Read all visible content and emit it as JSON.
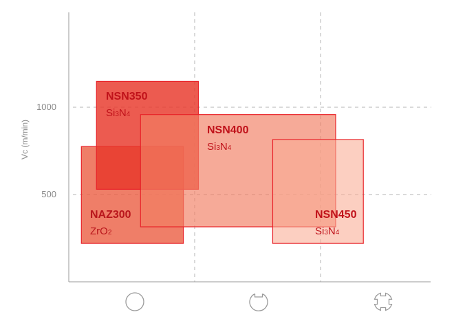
{
  "chart_data": {
    "type": "bar",
    "ylabel": "Vc (m/min)",
    "yticks": [
      500,
      1000
    ],
    "ylim": [
      0,
      1550
    ],
    "xlim": [
      0,
      3
    ],
    "x_categories": [
      {
        "name": "continuous-cut-icon"
      },
      {
        "name": "light-interrupted-cut-icon"
      },
      {
        "name": "heavy-interrupted-cut-icon"
      }
    ],
    "grid": {
      "vertical_dashed": [
        1,
        2
      ],
      "horizontal_dashed": [
        500,
        1000
      ]
    },
    "boxes": [
      {
        "id": "naz300",
        "name": "NAZ300",
        "mat_base": "ZrO",
        "mat_sub": "2",
        "x0": 0.1,
        "x1": 0.91,
        "y0": 220,
        "y1": 775,
        "fill": "#ea5a3e",
        "opacity": 0.78,
        "text_color": "#b9161c"
      },
      {
        "id": "nsn350",
        "name": "NSN350",
        "mat_base": "Si",
        "mat_sub": "3",
        "mat_base2": "N",
        "mat_sub2": "4",
        "x0": 0.22,
        "x1": 1.03,
        "y0": 530,
        "y1": 1148,
        "fill": "#e8372a",
        "opacity": 0.82,
        "text_color": "#c0121a"
      },
      {
        "id": "nsn400",
        "name": "NSN400",
        "mat_base": "Si",
        "mat_sub": "3",
        "mat_base2": "N",
        "mat_sub2": "4",
        "x0": 0.57,
        "x1": 2.12,
        "y0": 315,
        "y1": 958,
        "fill": "#f27e62",
        "opacity": 0.66,
        "text_color": "#c0121a"
      },
      {
        "id": "nsn450",
        "name": "NSN450",
        "mat_base": "Si",
        "mat_sub": "3",
        "mat_base2": "N",
        "mat_sub2": "4",
        "x0": 1.62,
        "x1": 2.34,
        "y0": 220,
        "y1": 815,
        "fill": "#f9ad95",
        "opacity": 0.58,
        "text_color": "#c0121a"
      }
    ],
    "colors": {
      "axis": "#9a9a9a",
      "grid": "#b4b4b4",
      "icon": "#9a9a9a",
      "border": "#e8242a"
    }
  }
}
